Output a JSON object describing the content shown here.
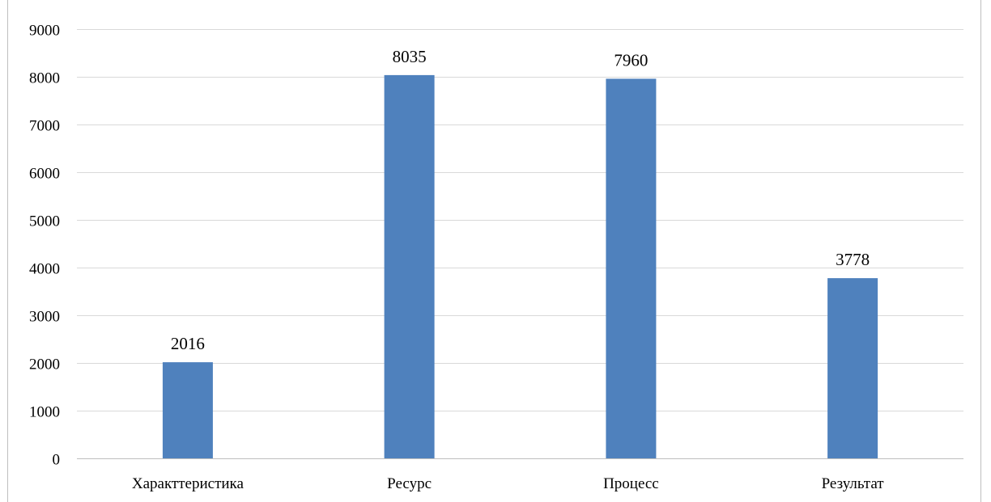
{
  "chart_data": {
    "type": "bar",
    "title": "",
    "xlabel": "",
    "ylabel": "",
    "categories": [
      "Характтеристика",
      "Ресурс",
      "Процесс",
      "Результат"
    ],
    "values": [
      2016,
      8035,
      7960,
      3778
    ],
    "data_labels": [
      "2016",
      "8035",
      "7960",
      "3778"
    ],
    "ylim": [
      0,
      9000
    ],
    "yticks": [
      0,
      1000,
      2000,
      3000,
      4000,
      5000,
      6000,
      7000,
      8000,
      9000
    ],
    "ytick_labels": [
      "0",
      "1000",
      "2000",
      "3000",
      "4000",
      "5000",
      "6000",
      "7000",
      "8000",
      "9000"
    ],
    "grid": true,
    "legend": "none",
    "bar_color": "#4f81bd",
    "grid_color": "#d9d9d9",
    "axis_color": "#bfbfbf"
  }
}
